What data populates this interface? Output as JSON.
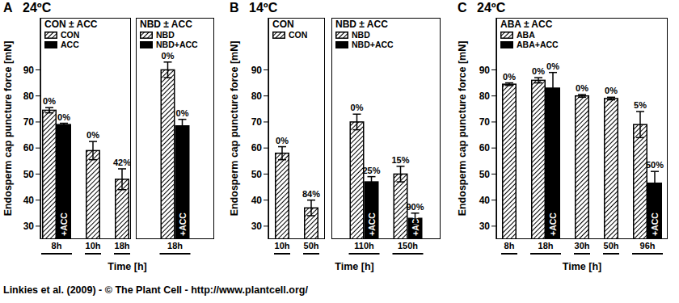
{
  "footer": "Linkies et al. (2009) - © The Plant Cell - http://www.plantcell.org/",
  "chart_data": [
    {
      "type": "bar",
      "panel": "A",
      "title": "24ºC",
      "y_label": "Endosperm cap puncture force [mN]",
      "x_label": "Time [h]",
      "subtitle": "CON ± ACC",
      "legend": "upper left",
      "categories": [
        "8h",
        "10h",
        "18h"
      ],
      "series": [
        {
          "name": "CON",
          "color": "#000000",
          "marker": "hatched",
          "values": [
            74.5,
            59,
            48
          ],
          "errors": [
            1,
            3.5,
            4
          ],
          "annotations": [
            "0%",
            "0%",
            "42%"
          ]
        },
        {
          "name": "ACC",
          "color": "#000000",
          "marker": "solid",
          "inner_label": "+ACC",
          "values": [
            69,
            null,
            null
          ],
          "errors": [
            0.5,
            null,
            null
          ],
          "annotations": [
            "0%",
            null,
            null
          ]
        }
      ],
      "ylim": [
        25,
        110
      ],
      "yticks": [
        30,
        40,
        50,
        60,
        70,
        80,
        90
      ]
    },
    {
      "type": "bar",
      "panel": "A",
      "subtitle": "NBD ± ACC",
      "legend": "upper left",
      "tick_labels": "x",
      "categories": [
        "18h"
      ],
      "series": [
        {
          "name": "NBD",
          "color": "#000000",
          "marker": "hatched",
          "values": [
            90
          ],
          "errors": [
            3
          ],
          "annotations": [
            "0%"
          ]
        },
        {
          "name": "NBD+ACC",
          "color": "#000000",
          "marker": "solid",
          "inner_label": "+ACC",
          "values": [
            68.5
          ],
          "errors": [
            2.5
          ],
          "annotations": [
            "0%"
          ]
        }
      ],
      "ylim": [
        25,
        110
      ]
    },
    {
      "type": "bar",
      "panel": "B",
      "title": "14ºC",
      "y_label": "Endosperm cap puncture force [mN]",
      "x_label": "Time [h]",
      "subtitle": "CON",
      "legend": "upper left",
      "categories": [
        "10h",
        "50h"
      ],
      "series": [
        {
          "name": "CON",
          "color": "#000000",
          "marker": "hatched",
          "values": [
            58,
            37
          ],
          "errors": [
            2.5,
            3
          ],
          "annotations": [
            "0%",
            "84%"
          ]
        }
      ],
      "ylim": [
        25,
        110
      ],
      "yticks": [
        30,
        40,
        50,
        60,
        70,
        80,
        90
      ]
    },
    {
      "type": "bar",
      "panel": "B",
      "subtitle": "NBD ± ACC",
      "legend": "upper left",
      "tick_labels": "x",
      "categories": [
        "110h",
        "150h"
      ],
      "series": [
        {
          "name": "NBD",
          "color": "#000000",
          "marker": "hatched",
          "values": [
            70,
            50
          ],
          "errors": [
            3,
            3
          ],
          "annotations": [
            "0%",
            "15%"
          ]
        },
        {
          "name": "NBD+ACC",
          "color": "#000000",
          "marker": "solid",
          "inner_label": "+ACC",
          "values": [
            47,
            33
          ],
          "errors": [
            2,
            2
          ],
          "annotations": [
            "25%",
            "90%"
          ]
        }
      ],
      "ylim": [
        25,
        110
      ]
    },
    {
      "type": "bar",
      "panel": "C",
      "title": "24ºC",
      "y_label": "Endosperm cap puncture force [mN]",
      "x_label": "Time [h]",
      "subtitle": "ABA ± ACC",
      "legend": "upper left",
      "categories": [
        "8h",
        "18h",
        "30h",
        "50h",
        "96h"
      ],
      "series": [
        {
          "name": "ABA",
          "color": "#000000",
          "marker": "hatched",
          "values": [
            84.5,
            86,
            80,
            79,
            69
          ],
          "errors": [
            0.5,
            1,
            0.5,
            0.5,
            5
          ],
          "annotations": [
            "0%",
            "0%",
            "0%",
            "0%",
            "5%"
          ]
        },
        {
          "name": "ABA+ACC",
          "color": "#000000",
          "marker": "solid",
          "inner_label": "+ACC",
          "values": [
            null,
            83,
            null,
            null,
            46.5
          ],
          "errors": [
            null,
            6,
            null,
            null,
            4.5
          ],
          "annotations": [
            null,
            "0%",
            null,
            null,
            "50%"
          ]
        }
      ],
      "ylim": [
        25,
        110
      ],
      "yticks": [
        30,
        40,
        50,
        60,
        70,
        80,
        90
      ]
    }
  ]
}
